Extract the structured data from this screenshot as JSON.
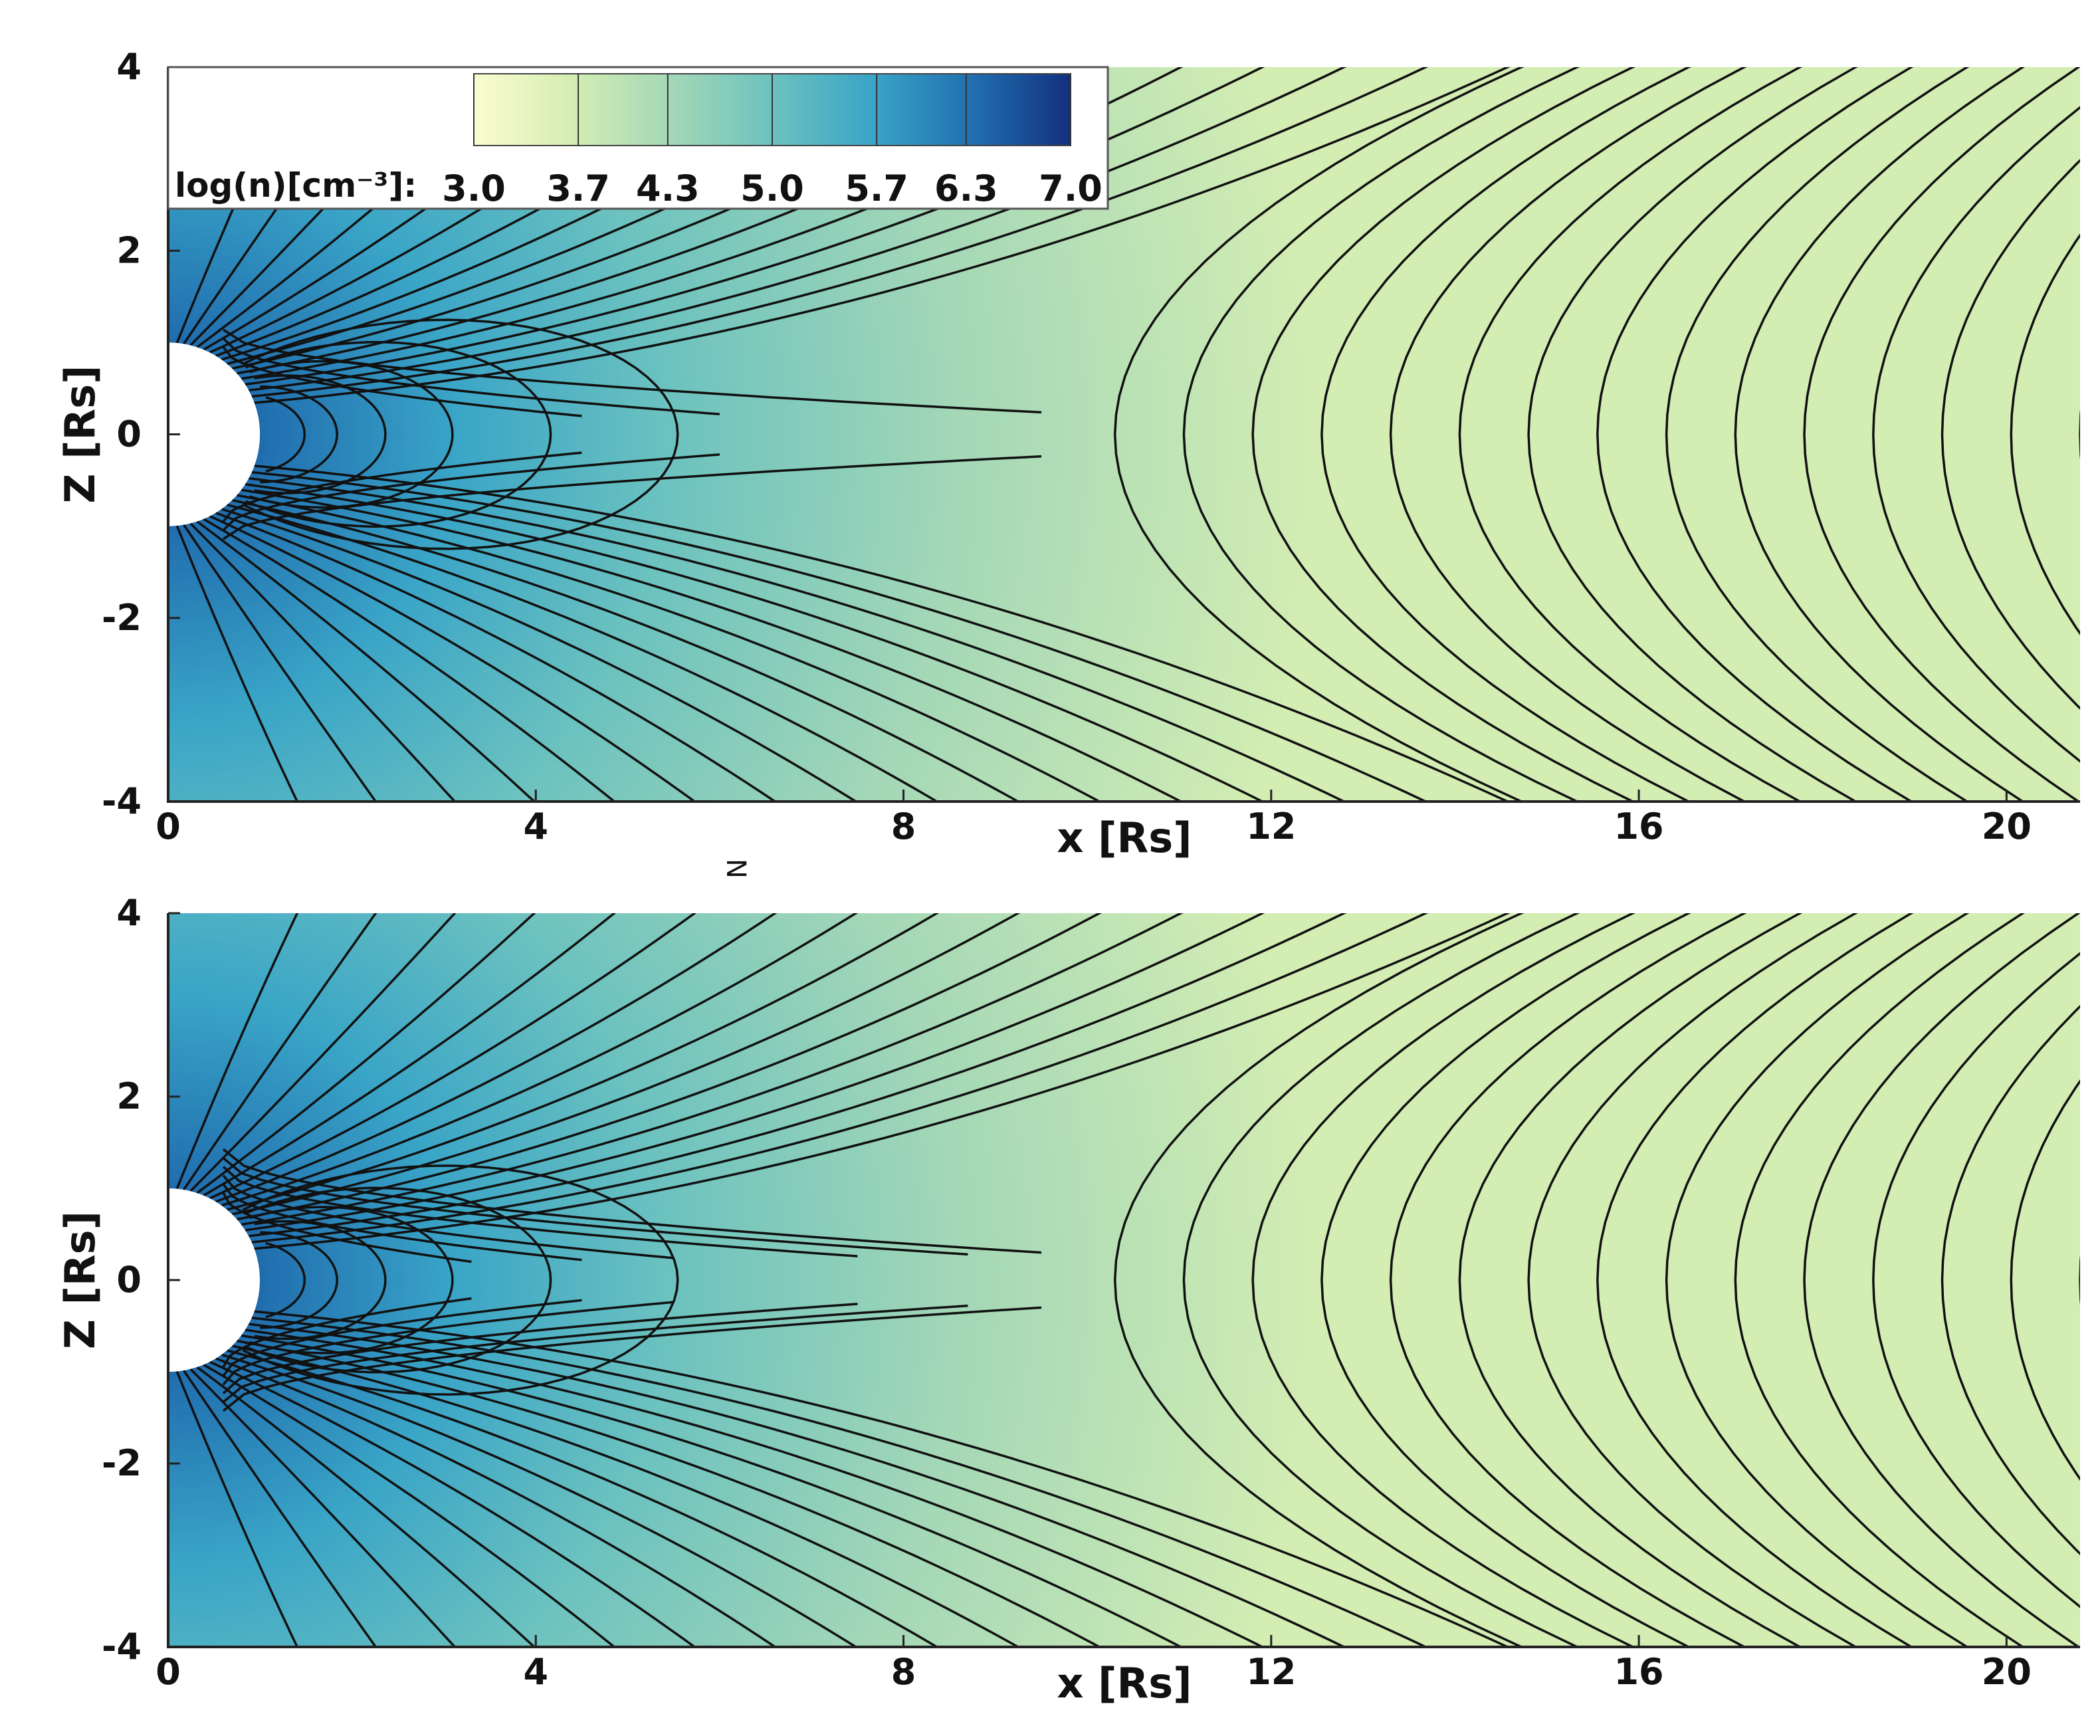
{
  "chart_data": [
    {
      "type": "streamline",
      "xlabel": "x [Rs]",
      "ylabel": "Z [Rs]",
      "xlim": [
        0,
        20.8
      ],
      "ylim": [
        -4,
        4
      ],
      "xticks": [
        0,
        4,
        8,
        12,
        16,
        20
      ],
      "yticks": [
        -4,
        -2,
        0,
        2,
        4
      ],
      "annotation": "N",
      "colorbar": {
        "label": "log(n)[cm⁻³]:",
        "lim": [
          3,
          7
        ],
        "ticks": [
          {
            "value": 3,
            "label": "3.0"
          },
          3.7,
          4.3,
          {
            "value": 5,
            "label": "5.0"
          },
          5.7,
          6.3,
          {
            "value": 7,
            "label": "7.0"
          }
        ],
        "colors": [
          "#fbfdd0",
          "#d3edb3",
          "#a3d7b7",
          "#6cc2bf",
          "#3aa5c7",
          "#2170b0",
          "#13307e"
        ]
      }
    },
    {
      "type": "streamline",
      "xlabel": "x [Rs]",
      "ylabel": "Z [Rs]",
      "xlim": [
        0,
        20.8
      ],
      "ylim": [
        -4,
        4
      ],
      "xticks": [
        0,
        4,
        8,
        12,
        16,
        20
      ],
      "yticks": [
        -4,
        -2,
        0,
        2,
        4
      ]
    }
  ]
}
